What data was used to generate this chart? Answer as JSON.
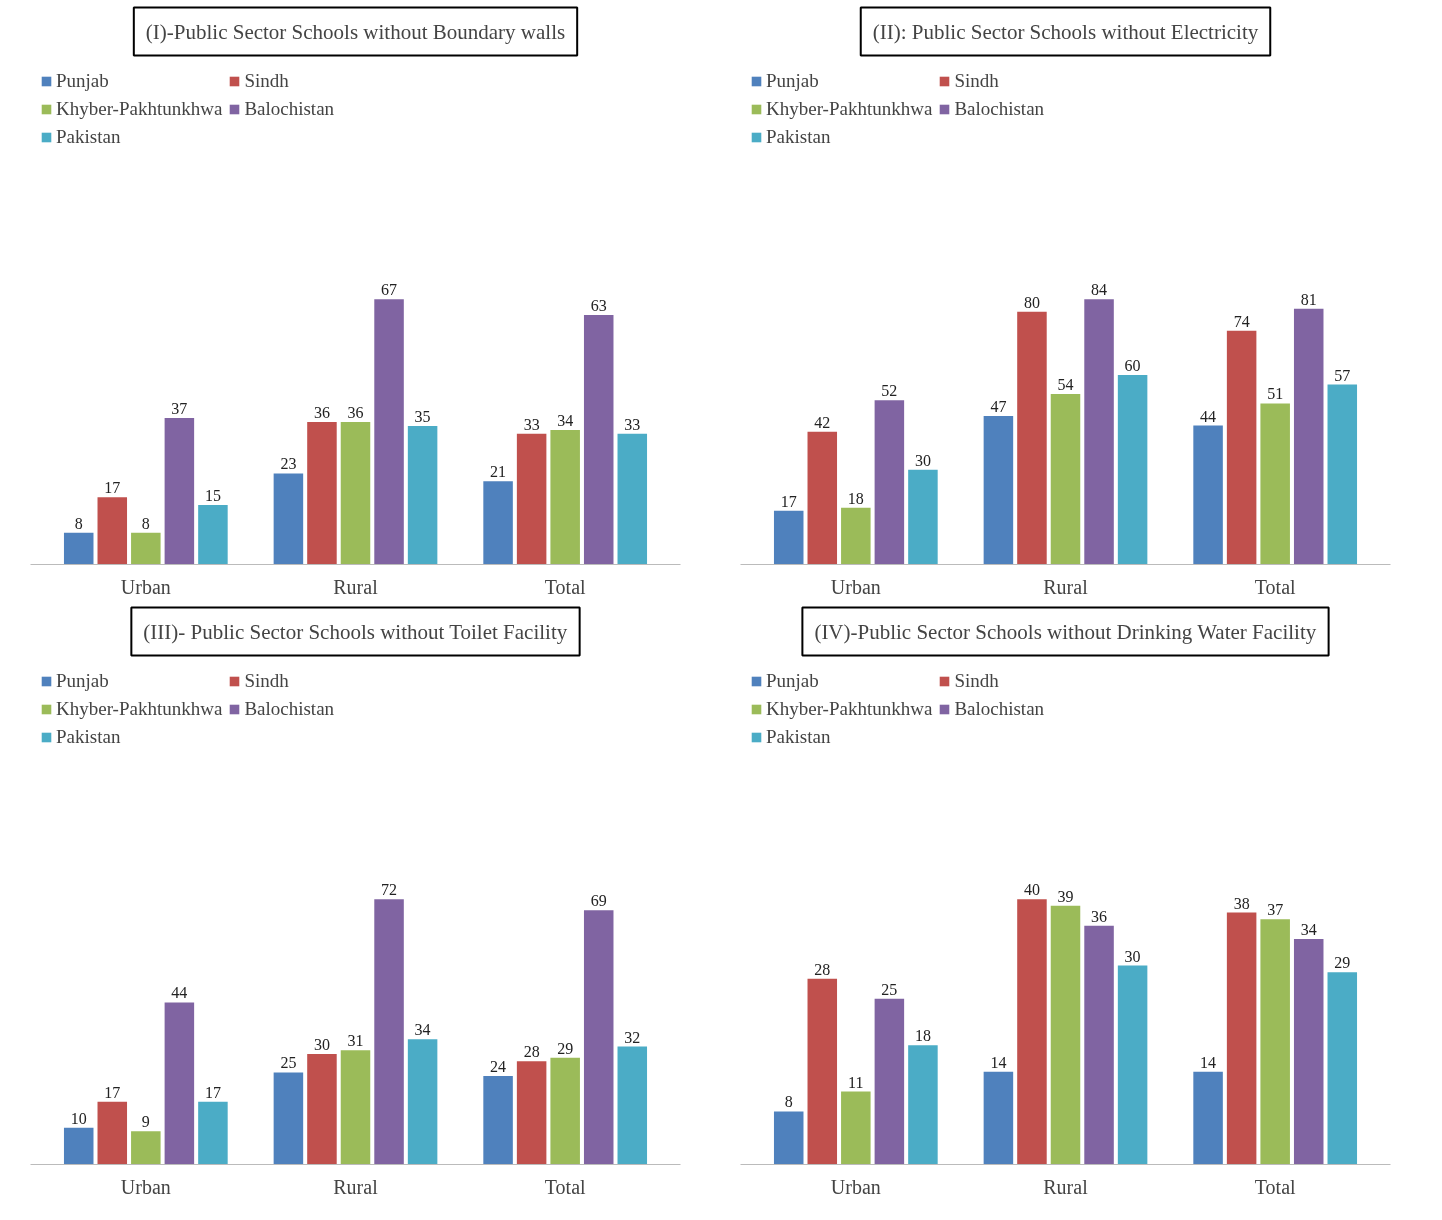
{
  "chart_data": [
    {
      "type": "bar",
      "title": "(I)-Public Sector Schools without Boundary walls",
      "categories": [
        "Urban",
        "Rural",
        "Total"
      ],
      "data_labels": true,
      "legend": "top",
      "grid": false,
      "series": [
        {
          "name": "Punjab",
          "color": "#4f81bd",
          "values": [
            8,
            23,
            21
          ]
        },
        {
          "name": "Sindh",
          "color": "#c0504d",
          "values": [
            17,
            36,
            33
          ]
        },
        {
          "name": "Khyber-Pakhtunkhwa",
          "color": "#9bbb59",
          "values": [
            8,
            36,
            34
          ]
        },
        {
          "name": "Balochistan",
          "color": "#8064a2",
          "values": [
            37,
            67,
            63
          ]
        },
        {
          "name": "Pakistan",
          "color": "#4bacc6",
          "values": [
            15,
            35,
            33
          ]
        }
      ]
    },
    {
      "type": "bar",
      "title": "(II): Public Sector Schools without Electricity",
      "categories": [
        "Urban",
        "Rural",
        "Total"
      ],
      "data_labels": true,
      "legend": "top",
      "grid": false,
      "series": [
        {
          "name": "Punjab",
          "color": "#4f81bd",
          "values": [
            17,
            47,
            44
          ]
        },
        {
          "name": "Sindh",
          "color": "#c0504d",
          "values": [
            42,
            80,
            74
          ]
        },
        {
          "name": "Khyber-Pakhtunkhwa",
          "color": "#9bbb59",
          "values": [
            18,
            54,
            51
          ]
        },
        {
          "name": "Balochistan",
          "color": "#8064a2",
          "values": [
            52,
            84,
            81
          ]
        },
        {
          "name": "Pakistan",
          "color": "#4bacc6",
          "values": [
            30,
            60,
            57
          ]
        }
      ]
    },
    {
      "type": "bar",
      "title": "(III)- Public Sector Schools without Toilet Facility",
      "categories": [
        "Urban",
        "Rural",
        "Total"
      ],
      "data_labels": true,
      "legend": "top",
      "grid": false,
      "series": [
        {
          "name": "Punjab",
          "color": "#4f81bd",
          "values": [
            10,
            25,
            24
          ]
        },
        {
          "name": "Sindh",
          "color": "#c0504d",
          "values": [
            17,
            30,
            28
          ]
        },
        {
          "name": "Khyber-Pakhtunkhwa",
          "color": "#9bbb59",
          "values": [
            9,
            31,
            29
          ]
        },
        {
          "name": "Balochistan",
          "color": "#8064a2",
          "values": [
            44,
            72,
            69
          ]
        },
        {
          "name": "Pakistan",
          "color": "#4bacc6",
          "values": [
            17,
            34,
            32
          ]
        }
      ]
    },
    {
      "type": "bar",
      "title": "(IV)-Public Sector Schools without Drinking Water Facility",
      "categories": [
        "Urban",
        "Rural",
        "Total"
      ],
      "data_labels": true,
      "legend": "top",
      "grid": false,
      "series": [
        {
          "name": "Punjab",
          "color": "#4f81bd",
          "values": [
            8,
            14,
            14
          ]
        },
        {
          "name": "Sindh",
          "color": "#c0504d",
          "values": [
            28,
            40,
            38
          ]
        },
        {
          "name": "Khyber-Pakhtunkhwa",
          "color": "#9bbb59",
          "values": [
            11,
            39,
            37
          ]
        },
        {
          "name": "Balochistan",
          "color": "#8064a2",
          "values": [
            25,
            36,
            34
          ]
        },
        {
          "name": "Pakistan",
          "color": "#4bacc6",
          "values": [
            18,
            30,
            29
          ]
        }
      ]
    }
  ]
}
